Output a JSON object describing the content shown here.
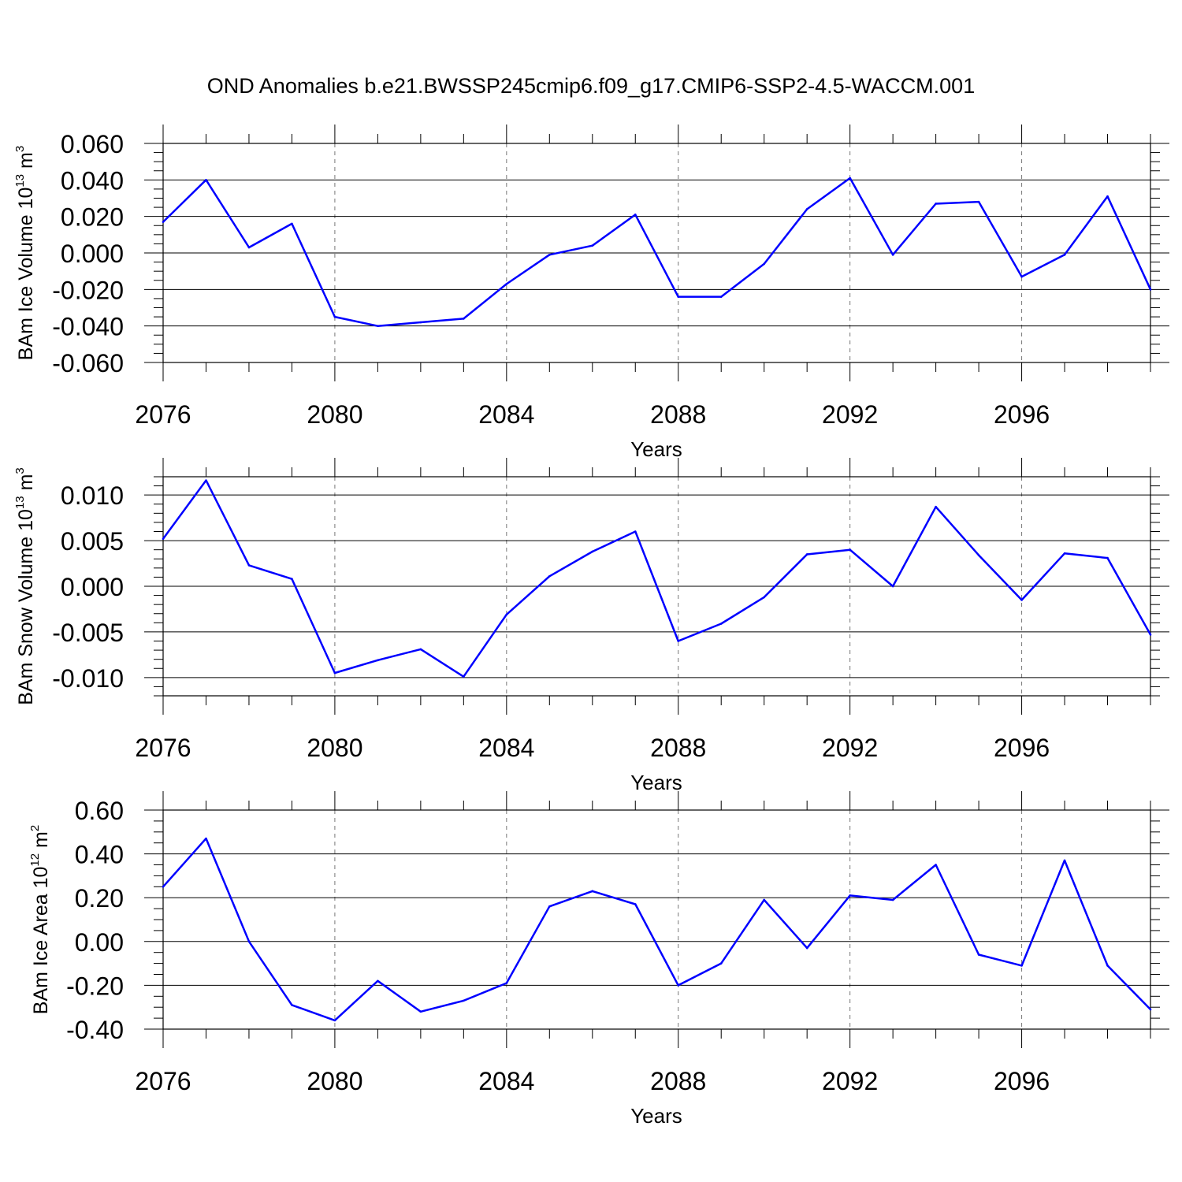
{
  "figure": {
    "title": "OND Anomalies b.e21.BWSSP245cmip6.f09_g17.CMIP6-SSP2-4.5-WACCM.001"
  },
  "style": {
    "line_color": "#0000ff",
    "axis_color": "#000000",
    "grid_color": "#777777"
  },
  "chart_data": [
    {
      "type": "line",
      "xlabel": "Years",
      "ylabel": {
        "text": "BAm Ice Volume 10",
        "sup": "13",
        "unit": " m",
        "unit_sup": "3"
      },
      "xlim": [
        2076,
        2099
      ],
      "ylim": [
        -0.06,
        0.06
      ],
      "grid": "vertical dashed at major x ticks",
      "x_ticks": [
        2076,
        2080,
        2084,
        2088,
        2092,
        2096
      ],
      "x_tick_labels": [
        "2076",
        "2080",
        "2084",
        "2088",
        "2092",
        "2096"
      ],
      "y_ticks": [
        -0.06,
        -0.04,
        -0.02,
        0.0,
        0.02,
        0.04,
        0.06
      ],
      "y_tick_labels": [
        "-0.060",
        "-0.040",
        "-0.020",
        "0.000",
        "0.020",
        "0.040",
        "0.060"
      ],
      "y_minor_step": 0.005,
      "x": [
        2076,
        2077,
        2078,
        2079,
        2080,
        2081,
        2082,
        2083,
        2084,
        2085,
        2086,
        2087,
        2088,
        2089,
        2090,
        2091,
        2092,
        2093,
        2094,
        2095,
        2096,
        2097,
        2098,
        2099
      ],
      "series": [
        {
          "values": [
            0.017,
            0.04,
            0.003,
            0.016,
            -0.035,
            -0.04,
            -0.038,
            -0.036,
            -0.017,
            -0.001,
            0.004,
            0.021,
            -0.024,
            -0.024,
            -0.006,
            0.024,
            0.041,
            -0.001,
            0.027,
            0.028,
            -0.013,
            -0.001,
            0.031,
            -0.02
          ]
        }
      ]
    },
    {
      "type": "line",
      "xlabel": "Years",
      "ylabel": {
        "text": "BAm Snow Volume 10",
        "sup": "13",
        "unit": " m",
        "unit_sup": "3"
      },
      "xlim": [
        2076,
        2099
      ],
      "ylim": [
        -0.012,
        0.012
      ],
      "grid": "vertical dashed at major x ticks",
      "x_ticks": [
        2076,
        2080,
        2084,
        2088,
        2092,
        2096
      ],
      "x_tick_labels": [
        "2076",
        "2080",
        "2084",
        "2088",
        "2092",
        "2096"
      ],
      "y_ticks": [
        -0.01,
        -0.005,
        0.0,
        0.005,
        0.01
      ],
      "y_tick_labels": [
        "-0.010",
        "-0.005",
        "0.000",
        "0.005",
        "0.010"
      ],
      "y_minor_step": 0.001,
      "x": [
        2076,
        2077,
        2078,
        2079,
        2080,
        2081,
        2082,
        2083,
        2084,
        2085,
        2086,
        2087,
        2088,
        2089,
        2090,
        2091,
        2092,
        2093,
        2094,
        2095,
        2096,
        2097,
        2098,
        2099
      ],
      "series": [
        {
          "values": [
            0.0052,
            0.0116,
            0.0023,
            0.0008,
            -0.0095,
            -0.0081,
            -0.0069,
            -0.0099,
            -0.0031,
            0.0011,
            0.0038,
            0.006,
            -0.006,
            -0.0041,
            -0.0012,
            0.0035,
            0.004,
            0.0,
            0.0087,
            0.0034,
            -0.0015,
            0.0036,
            0.0031,
            -0.0053
          ]
        }
      ]
    },
    {
      "type": "line",
      "xlabel": "Years",
      "ylabel": {
        "text": "BAm Ice Area 10",
        "sup": "12",
        "unit": " m",
        "unit_sup": "2"
      },
      "xlim": [
        2076,
        2099
      ],
      "ylim": [
        -0.4,
        0.6
      ],
      "grid": "vertical dashed at major x ticks",
      "x_ticks": [
        2076,
        2080,
        2084,
        2088,
        2092,
        2096
      ],
      "x_tick_labels": [
        "2076",
        "2080",
        "2084",
        "2088",
        "2092",
        "2096"
      ],
      "y_ticks": [
        -0.4,
        -0.2,
        0.0,
        0.2,
        0.4,
        0.6
      ],
      "y_tick_labels": [
        "-0.40",
        "-0.20",
        "0.00",
        "0.20",
        "0.40",
        "0.60"
      ],
      "y_minor_step": 0.05,
      "x": [
        2076,
        2077,
        2078,
        2079,
        2080,
        2081,
        2082,
        2083,
        2084,
        2085,
        2086,
        2087,
        2088,
        2089,
        2090,
        2091,
        2092,
        2093,
        2094,
        2095,
        2096,
        2097,
        2098,
        2099
      ],
      "series": [
        {
          "values": [
            0.25,
            0.47,
            0.0,
            -0.29,
            -0.36,
            -0.18,
            -0.32,
            -0.27,
            -0.19,
            0.16,
            0.23,
            0.17,
            -0.2,
            -0.1,
            0.19,
            -0.03,
            0.21,
            0.19,
            0.35,
            -0.06,
            -0.11,
            0.37,
            -0.11,
            -0.31
          ]
        }
      ]
    }
  ]
}
